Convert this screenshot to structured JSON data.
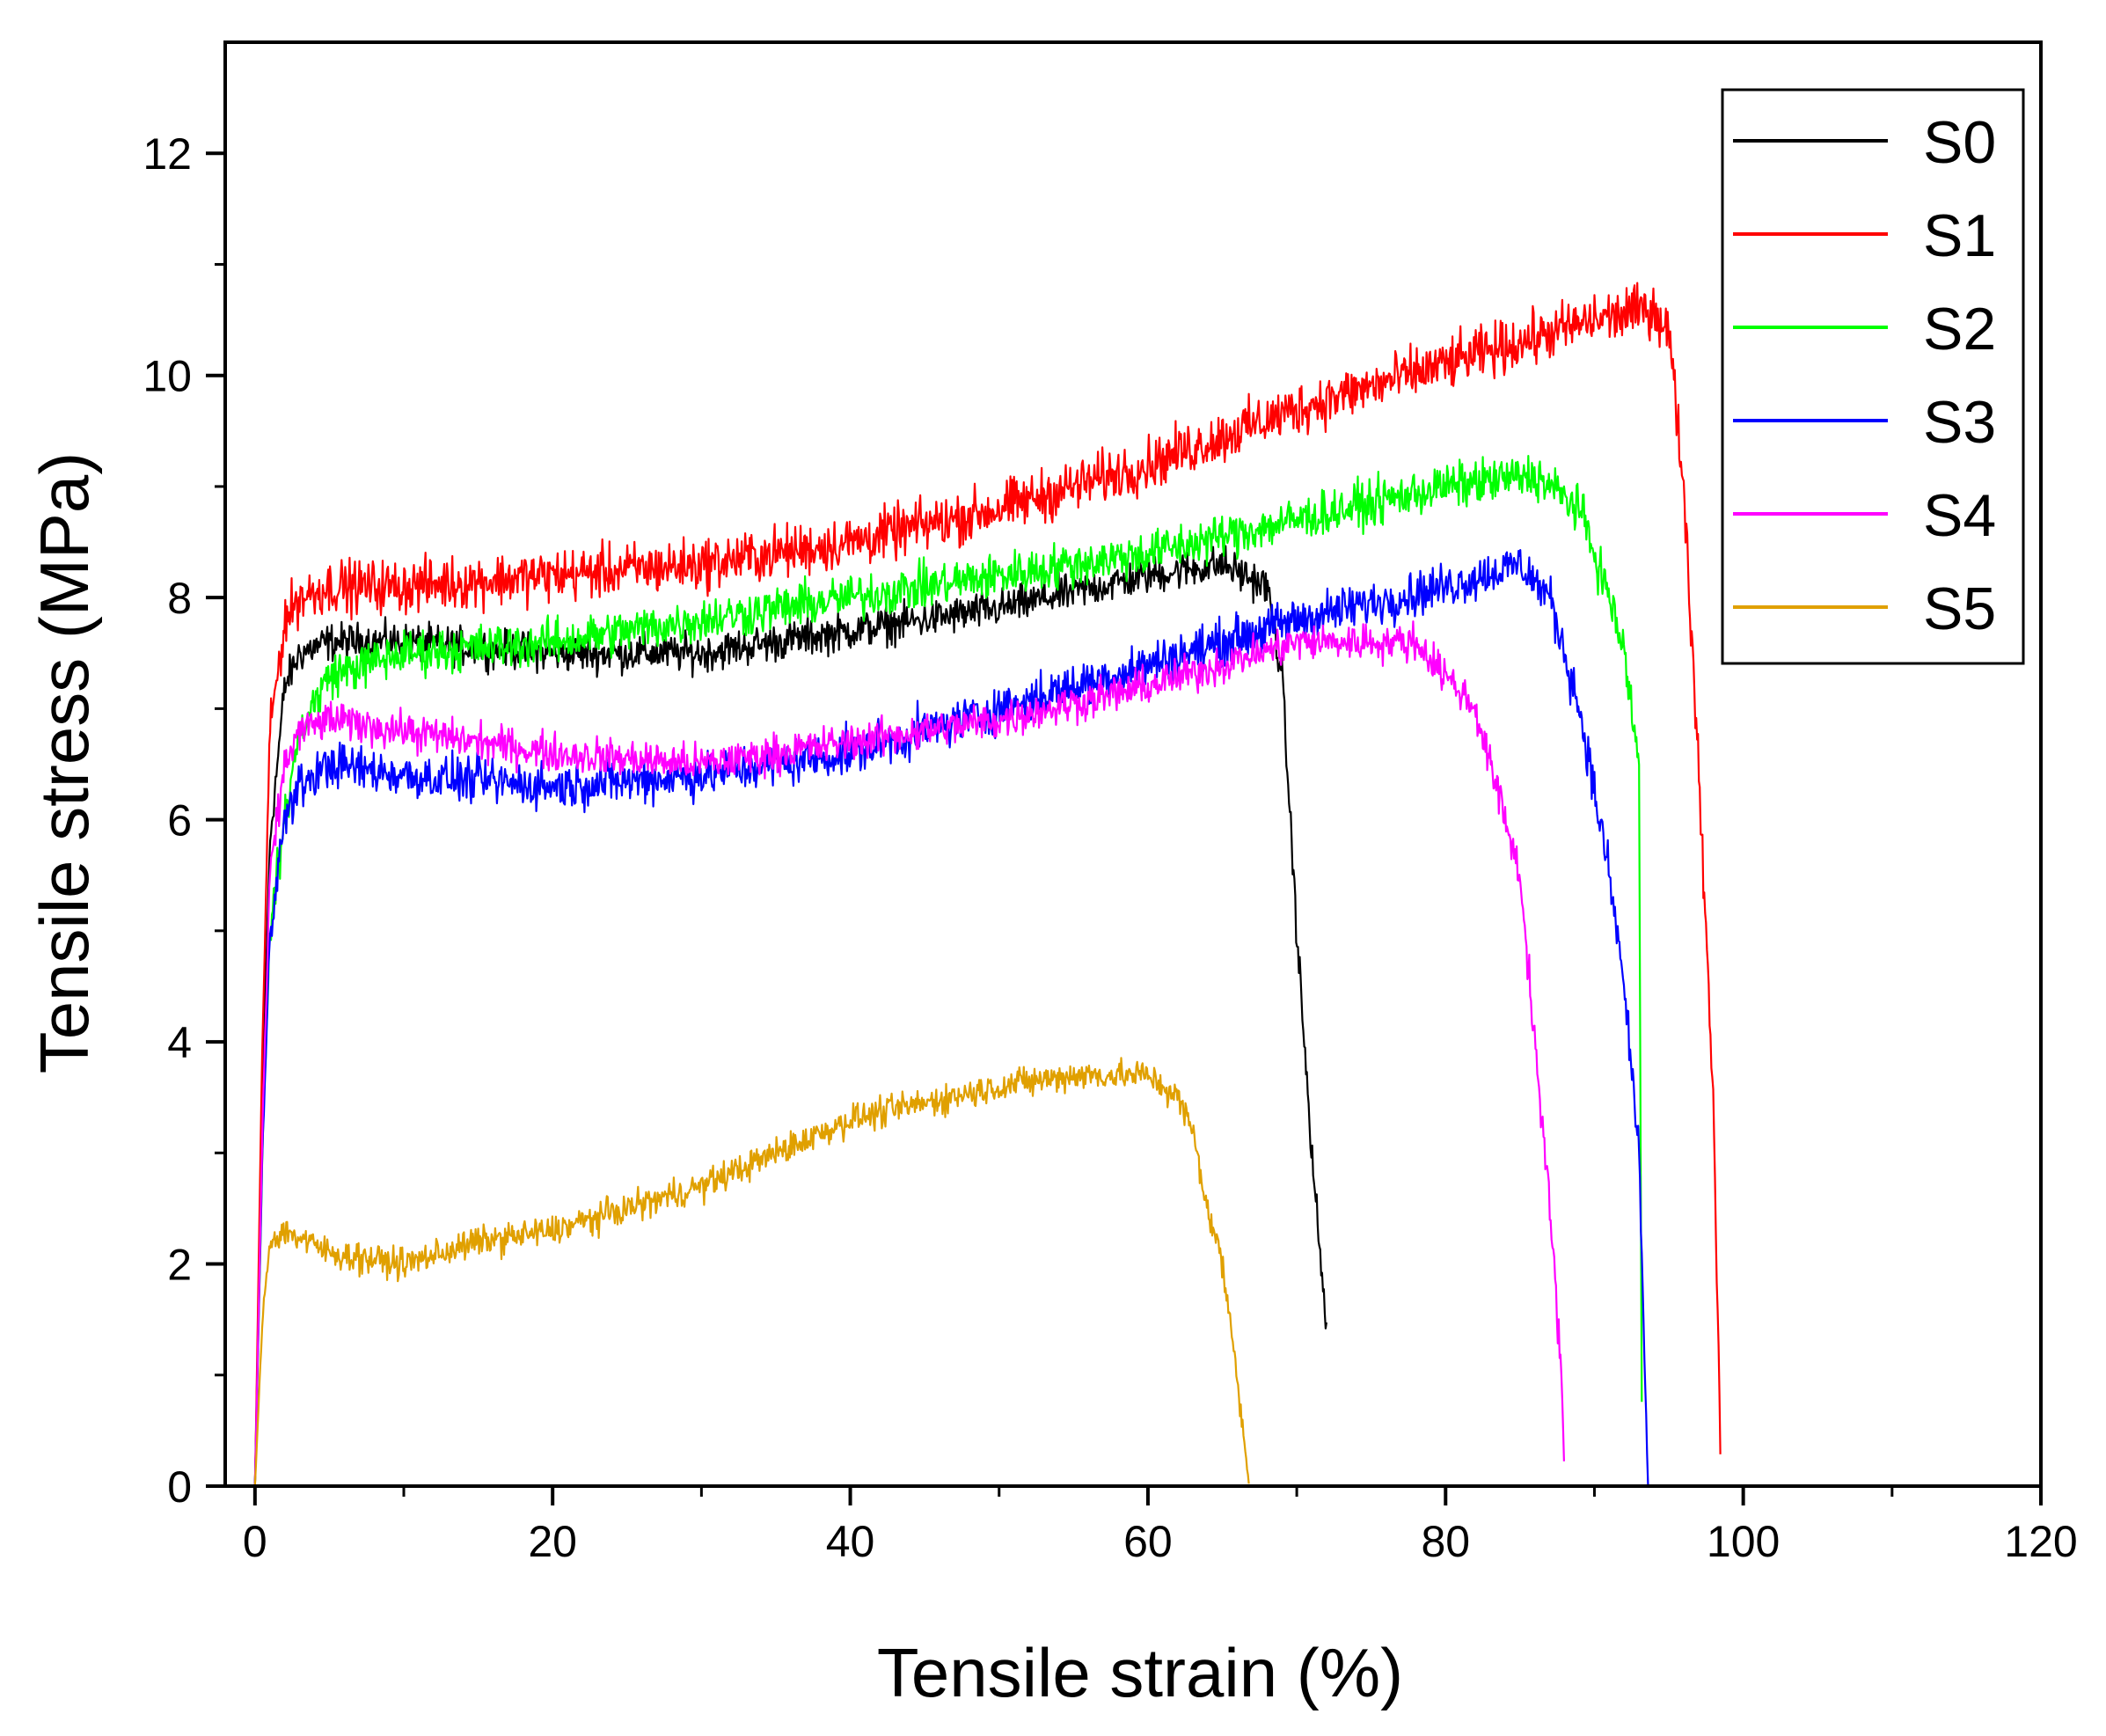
{
  "chart_data": {
    "type": "line",
    "title": "",
    "xlabel": "Tensile strain (%)",
    "ylabel": "Tensile stress (MPa)",
    "xlim": [
      -2,
      120
    ],
    "ylim": [
      0,
      13
    ],
    "xticks": [
      0,
      20,
      40,
      60,
      80,
      100,
      120
    ],
    "yticks": [
      0,
      2,
      4,
      6,
      8,
      10,
      12
    ],
    "xtick_labels": [
      "0",
      "20",
      "40",
      "60",
      "80",
      "100",
      "120"
    ],
    "ytick_labels": [
      "0",
      "2",
      "4",
      "6",
      "8",
      "10",
      "12"
    ],
    "grid": false,
    "legend_position": "top-right",
    "series": [
      {
        "name": "S0",
        "color": "#000000",
        "noise": 0.25,
        "x": [
          0,
          0.5,
          1,
          2,
          3,
          5,
          10,
          20,
          30,
          40,
          50,
          60,
          65,
          68,
          69,
          70,
          71,
          72
        ],
        "y": [
          0,
          3.5,
          5.8,
          7.2,
          7.5,
          7.6,
          7.6,
          7.5,
          7.5,
          7.7,
          7.9,
          8.2,
          8.3,
          8.1,
          7.3,
          5.0,
          3.0,
          1.4
        ]
      },
      {
        "name": "S1",
        "color": "#ff0000",
        "noise": 0.35,
        "x": [
          0,
          0.5,
          1,
          2,
          3,
          5,
          10,
          20,
          30,
          40,
          50,
          60,
          70,
          80,
          90,
          94,
          95,
          96,
          97,
          98,
          98.5
        ],
        "y": [
          0,
          4.0,
          6.8,
          7.8,
          8.0,
          8.1,
          8.1,
          8.2,
          8.3,
          8.5,
          8.8,
          9.2,
          9.7,
          10.1,
          10.5,
          10.6,
          10.4,
          9.0,
          6.5,
          3.5,
          0
        ]
      },
      {
        "name": "S2",
        "color": "#00ff00",
        "noise": 0.3,
        "x": [
          0,
          0.5,
          1,
          2,
          3,
          5,
          10,
          20,
          30,
          40,
          50,
          60,
          70,
          80,
          86,
          89,
          91,
          92,
          93,
          93.2
        ],
        "y": [
          0,
          3.0,
          5.0,
          6.0,
          6.8,
          7.3,
          7.5,
          7.6,
          7.8,
          8.0,
          8.2,
          8.4,
          8.7,
          9.0,
          9.1,
          8.8,
          8.0,
          7.5,
          6.5,
          0
        ]
      },
      {
        "name": "S3",
        "color": "#0000ff",
        "noise": 0.3,
        "x": [
          0,
          0.5,
          1,
          2,
          3,
          5,
          10,
          20,
          30,
          40,
          50,
          60,
          70,
          80,
          85,
          87,
          89,
          91,
          92,
          93,
          93.6
        ],
        "y": [
          0,
          3.0,
          5.0,
          6.0,
          6.3,
          6.5,
          6.4,
          6.3,
          6.4,
          6.6,
          7.0,
          7.4,
          7.8,
          8.1,
          8.3,
          8.0,
          7.0,
          5.5,
          4.5,
          3.0,
          0
        ]
      },
      {
        "name": "S4",
        "color": "#ff00ff",
        "noise": 0.25,
        "x": [
          0,
          0.5,
          1,
          2,
          3,
          5,
          10,
          20,
          30,
          40,
          50,
          60,
          70,
          78,
          82,
          85,
          86,
          87,
          87.8,
          88
        ],
        "y": [
          0,
          3.2,
          5.5,
          6.5,
          6.8,
          6.9,
          6.8,
          6.6,
          6.5,
          6.7,
          6.9,
          7.2,
          7.6,
          7.6,
          7.0,
          5.5,
          4.0,
          2.5,
          1.0,
          0
        ]
      },
      {
        "name": "S5",
        "color": "#e0a000",
        "noise": 0.2,
        "x": [
          0,
          0.5,
          1,
          2,
          5,
          10,
          15,
          20,
          30,
          40,
          50,
          55,
          60,
          62,
          63,
          64,
          65,
          66,
          66.8
        ],
        "y": [
          0,
          1.5,
          2.2,
          2.3,
          2.1,
          2.0,
          2.2,
          2.3,
          2.7,
          3.3,
          3.6,
          3.7,
          3.7,
          3.5,
          3.2,
          2.5,
          2.0,
          1.0,
          0
        ]
      }
    ]
  }
}
